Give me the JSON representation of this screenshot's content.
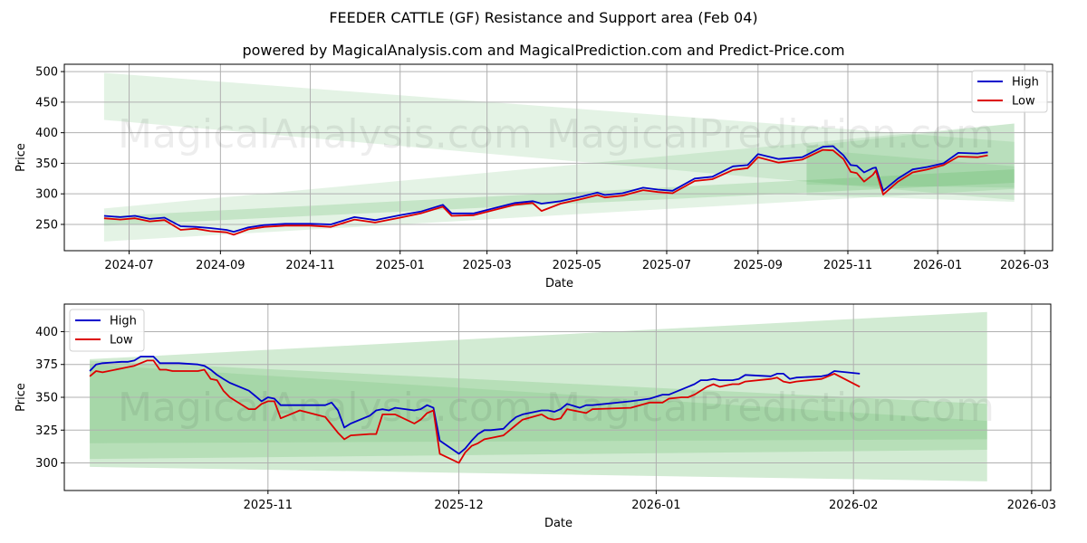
{
  "title": "FEEDER CATTLE (GF) Resistance and Support area (Feb 04)",
  "subtitle": "powered by MagicalAnalysis.com and MagicalPrediction.com and Predict-Price.com",
  "watermarks": [
    "MagicalAnalysis.com",
    "MagicalPrediction.com"
  ],
  "colors": {
    "high": "#0000cc",
    "low": "#dd0000",
    "band": "#4caf50",
    "grid": "#b0b0b0"
  },
  "chart_data": [
    {
      "type": "line",
      "title": "",
      "xlabel": "Date",
      "ylabel": "Price",
      "ylim": [
        207,
        512
      ],
      "xlim": [
        "2024-05-18",
        "2026-03-20"
      ],
      "grid": true,
      "legend_position": "upper right",
      "yticks": [
        250,
        300,
        350,
        400,
        450,
        500
      ],
      "xticks": [
        "2024-07",
        "2024-09",
        "2024-11",
        "2025-01",
        "2025-03",
        "2025-05",
        "2025-07",
        "2025-09",
        "2025-11",
        "2026-01",
        "2026-03"
      ],
      "series": [
        {
          "name": "High",
          "color": "#0000cc",
          "x": [
            "2024-06-14",
            "2024-06-25",
            "2024-07-05",
            "2024-07-15",
            "2024-07-25",
            "2024-08-05",
            "2024-08-15",
            "2024-08-25",
            "2024-09-05",
            "2024-09-10",
            "2024-09-20",
            "2024-10-01",
            "2024-10-15",
            "2024-11-01",
            "2024-11-15",
            "2024-12-01",
            "2024-12-15",
            "2025-01-01",
            "2025-01-15",
            "2025-01-30",
            "2025-02-05",
            "2025-02-20",
            "2025-03-05",
            "2025-03-20",
            "2025-04-01",
            "2025-04-07",
            "2025-04-20",
            "2025-05-05",
            "2025-05-15",
            "2025-05-20",
            "2025-06-01",
            "2025-06-15",
            "2025-06-25",
            "2025-07-05",
            "2025-07-20",
            "2025-08-01",
            "2025-08-15",
            "2025-08-25",
            "2025-09-01",
            "2025-09-15",
            "2025-10-01",
            "2025-10-15",
            "2025-10-22",
            "2025-10-29",
            "2025-11-03",
            "2025-11-07",
            "2025-11-12",
            "2025-11-18",
            "2025-11-20",
            "2025-11-25",
            "2025-12-05",
            "2025-12-15",
            "2025-12-25",
            "2026-01-05",
            "2026-01-15",
            "2026-01-28",
            "2026-02-04"
          ],
          "values": [
            264,
            262,
            264,
            259,
            261,
            247,
            246,
            244,
            241,
            238,
            245,
            249,
            251,
            251,
            250,
            262,
            257,
            265,
            271,
            282,
            268,
            268,
            276,
            285,
            288,
            284,
            288,
            296,
            302,
            298,
            301,
            310,
            307,
            305,
            325,
            328,
            345,
            347,
            365,
            357,
            360,
            377,
            378,
            363,
            347,
            346,
            335,
            342,
            343,
            305,
            325,
            340,
            344,
            350,
            367,
            366,
            368
          ]
        },
        {
          "name": "Low",
          "color": "#dd0000",
          "x": [
            "2024-06-14",
            "2024-06-25",
            "2024-07-05",
            "2024-07-15",
            "2024-07-25",
            "2024-08-05",
            "2024-08-15",
            "2024-08-25",
            "2024-09-05",
            "2024-09-10",
            "2024-09-20",
            "2024-10-01",
            "2024-10-15",
            "2024-11-01",
            "2024-11-15",
            "2024-12-01",
            "2024-12-15",
            "2025-01-01",
            "2025-01-15",
            "2025-01-30",
            "2025-02-05",
            "2025-02-20",
            "2025-03-05",
            "2025-03-20",
            "2025-04-01",
            "2025-04-07",
            "2025-04-20",
            "2025-05-05",
            "2025-05-15",
            "2025-05-20",
            "2025-06-01",
            "2025-06-15",
            "2025-06-25",
            "2025-07-05",
            "2025-07-20",
            "2025-08-01",
            "2025-08-15",
            "2025-08-25",
            "2025-09-01",
            "2025-09-15",
            "2025-10-01",
            "2025-10-15",
            "2025-10-22",
            "2025-10-29",
            "2025-11-03",
            "2025-11-07",
            "2025-11-12",
            "2025-11-18",
            "2025-11-20",
            "2025-11-25",
            "2025-12-05",
            "2025-12-15",
            "2025-12-25",
            "2026-01-05",
            "2026-01-15",
            "2026-01-28",
            "2026-02-04"
          ],
          "values": [
            260,
            258,
            260,
            255,
            257,
            241,
            243,
            239,
            237,
            233,
            242,
            246,
            248,
            248,
            246,
            258,
            253,
            261,
            268,
            279,
            264,
            265,
            273,
            282,
            285,
            272,
            284,
            292,
            298,
            294,
            297,
            306,
            303,
            301,
            321,
            324,
            339,
            342,
            360,
            351,
            356,
            372,
            371,
            357,
            336,
            334,
            320,
            331,
            338,
            299,
            320,
            335,
            340,
            347,
            361,
            360,
            363
          ]
        }
      ],
      "bands": [
        {
          "name": "upper-resistance",
          "x": [
            "2024-06-14",
            "2026-02-22"
          ],
          "upper": [
            498,
            385
          ],
          "lower": [
            421,
            290
          ]
        },
        {
          "name": "lower-support-outer",
          "x": [
            "2024-06-14",
            "2026-02-22"
          ],
          "upper": [
            276,
            415
          ],
          "lower": [
            222,
            308
          ]
        },
        {
          "name": "lower-support-inner",
          "x": [
            "2024-06-14",
            "2026-02-22"
          ],
          "upper": [
            263,
            340
          ],
          "lower": [
            248,
            318
          ]
        },
        {
          "name": "forecast-outer",
          "x": [
            "2025-10-04",
            "2026-02-22"
          ],
          "upper": [
            378,
            415
          ],
          "lower": [
            298,
            287
          ]
        },
        {
          "name": "forecast-inner",
          "x": [
            "2025-10-04",
            "2026-02-22"
          ],
          "upper": [
            373,
            345
          ],
          "lower": [
            315,
            310
          ]
        }
      ]
    },
    {
      "type": "line",
      "title": "",
      "xlabel": "Date",
      "ylabel": "Price",
      "ylim": [
        279,
        421
      ],
      "xlim": [
        "2025-09-30",
        "2026-03-04"
      ],
      "grid": true,
      "legend_position": "upper left",
      "yticks": [
        300,
        325,
        350,
        375,
        400
      ],
      "xticks": [
        "2025-11",
        "2025-12",
        "2026-01",
        "2026-02",
        "2026-03"
      ],
      "series": [
        {
          "name": "High",
          "color": "#0000cc",
          "x": [
            "2025-10-04",
            "2025-10-05",
            "2025-10-06",
            "2025-10-09",
            "2025-10-10",
            "2025-10-11",
            "2025-10-12",
            "2025-10-13",
            "2025-10-14",
            "2025-10-15",
            "2025-10-16",
            "2025-10-17",
            "2025-10-18",
            "2025-10-21",
            "2025-10-22",
            "2025-10-23",
            "2025-10-24",
            "2025-10-25",
            "2025-10-26",
            "2025-10-29",
            "2025-10-30",
            "2025-10-31",
            "2025-11-01",
            "2025-11-02",
            "2025-11-03",
            "2025-11-05",
            "2025-11-06",
            "2025-11-10",
            "2025-11-11",
            "2025-11-12",
            "2025-11-13",
            "2025-11-14",
            "2025-11-17",
            "2025-11-18",
            "2025-11-19",
            "2025-11-20",
            "2025-11-21",
            "2025-11-24",
            "2025-11-25",
            "2025-11-26",
            "2025-11-27",
            "2025-11-28",
            "2025-12-01",
            "2025-12-02",
            "2025-12-03",
            "2025-12-04",
            "2025-12-05",
            "2025-12-06",
            "2025-12-08",
            "2025-12-09",
            "2025-12-10",
            "2025-12-11",
            "2025-12-14",
            "2025-12-15",
            "2025-12-16",
            "2025-12-17",
            "2025-12-18",
            "2025-12-20",
            "2025-12-21",
            "2025-12-22",
            "2025-12-28",
            "2025-12-31",
            "2026-01-02",
            "2026-01-03",
            "2026-01-05",
            "2026-01-06",
            "2026-01-07",
            "2026-01-08",
            "2026-01-09",
            "2026-01-10",
            "2026-01-11",
            "2026-01-12",
            "2026-01-13",
            "2026-01-14",
            "2026-01-15",
            "2026-01-19",
            "2026-01-20",
            "2026-01-21",
            "2026-01-22",
            "2026-01-23",
            "2026-01-27",
            "2026-01-28",
            "2026-01-29",
            "2026-02-02"
          ],
          "values": [
            370,
            375,
            376,
            377,
            377,
            378,
            381,
            381,
            381,
            376,
            376,
            376,
            376,
            375,
            374,
            371,
            367,
            364,
            361,
            355,
            351,
            347,
            350,
            349,
            344,
            344,
            344,
            344,
            346,
            340,
            327,
            330,
            336,
            340,
            341,
            340,
            342,
            340,
            341,
            344,
            342,
            317,
            307,
            311,
            317,
            322,
            325,
            325,
            326,
            331,
            335,
            337,
            340,
            340,
            339,
            341,
            345,
            342,
            344,
            344,
            347,
            349,
            352,
            352,
            356,
            358,
            360,
            363,
            363,
            364,
            363,
            363,
            363,
            364,
            367,
            366,
            368,
            368,
            364,
            365,
            366,
            367,
            370,
            368
          ]
        },
        {
          "name": "Low",
          "color": "#dd0000",
          "x": [
            "2025-10-04",
            "2025-10-05",
            "2025-10-06",
            "2025-10-09",
            "2025-10-10",
            "2025-10-11",
            "2025-10-12",
            "2025-10-13",
            "2025-10-14",
            "2025-10-15",
            "2025-10-16",
            "2025-10-17",
            "2025-10-18",
            "2025-10-21",
            "2025-10-22",
            "2025-10-23",
            "2025-10-24",
            "2025-10-25",
            "2025-10-26",
            "2025-10-29",
            "2025-10-30",
            "2025-10-31",
            "2025-11-01",
            "2025-11-02",
            "2025-11-03",
            "2025-11-05",
            "2025-11-06",
            "2025-11-10",
            "2025-11-11",
            "2025-11-12",
            "2025-11-13",
            "2025-11-14",
            "2025-11-17",
            "2025-11-18",
            "2025-11-19",
            "2025-11-20",
            "2025-11-21",
            "2025-11-24",
            "2025-11-25",
            "2025-11-26",
            "2025-11-27",
            "2025-11-28",
            "2025-12-01",
            "2025-12-02",
            "2025-12-03",
            "2025-12-04",
            "2025-12-05",
            "2025-12-06",
            "2025-12-08",
            "2025-12-09",
            "2025-12-10",
            "2025-12-11",
            "2025-12-14",
            "2025-12-15",
            "2025-12-16",
            "2025-12-17",
            "2025-12-18",
            "2025-12-20",
            "2025-12-21",
            "2025-12-22",
            "2025-12-28",
            "2025-12-31",
            "2026-01-02",
            "2026-01-03",
            "2026-01-05",
            "2026-01-06",
            "2026-01-07",
            "2026-01-08",
            "2026-01-09",
            "2026-01-10",
            "2026-01-11",
            "2026-01-12",
            "2026-01-13",
            "2026-01-14",
            "2026-01-15",
            "2026-01-19",
            "2026-01-20",
            "2026-01-21",
            "2026-01-22",
            "2026-01-23",
            "2026-01-27",
            "2026-01-28",
            "2026-01-29",
            "2026-02-02"
          ],
          "values": [
            366,
            370,
            369,
            372,
            373,
            374,
            376,
            378,
            378,
            371,
            371,
            370,
            370,
            370,
            371,
            364,
            363,
            355,
            350,
            341,
            341,
            345,
            347,
            347,
            334,
            338,
            340,
            335,
            329,
            323,
            318,
            321,
            322,
            322,
            337,
            337,
            337,
            330,
            333,
            338,
            340,
            307,
            300,
            308,
            313,
            315,
            318,
            319,
            321,
            325,
            329,
            333,
            337,
            334,
            333,
            334,
            341,
            339,
            338,
            341,
            342,
            346,
            346,
            349,
            350,
            350,
            352,
            355,
            358,
            360,
            358,
            359,
            360,
            360,
            362,
            364,
            365,
            362,
            361,
            362,
            364,
            366,
            368,
            358
          ]
        }
      ],
      "bands": [
        {
          "name": "outer-band",
          "x": [
            "2025-10-04",
            "2026-02-22"
          ],
          "upper": [
            379,
            415
          ],
          "lower": [
            297,
            286
          ]
        },
        {
          "name": "middle-band",
          "x": [
            "2025-10-04",
            "2026-02-22"
          ],
          "upper": [
            378,
            345
          ],
          "lower": [
            303,
            310
          ]
        },
        {
          "name": "inner-band",
          "x": [
            "2025-10-04",
            "2026-02-22"
          ],
          "upper": [
            375,
            332
          ],
          "lower": [
            315,
            318
          ]
        }
      ]
    }
  ]
}
